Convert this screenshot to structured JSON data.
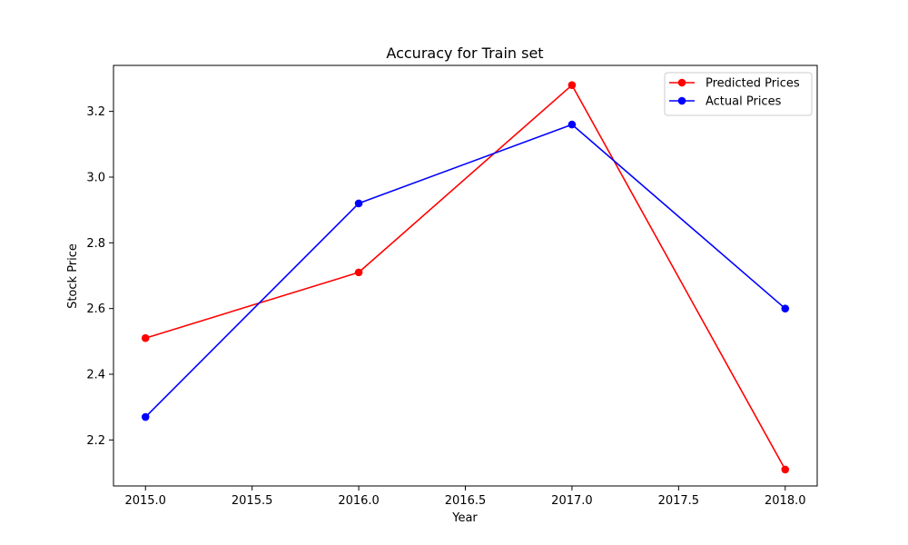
{
  "chart_data": {
    "type": "line",
    "title": "Accuracy for Train set",
    "xlabel": "Year",
    "ylabel": "Stock Price",
    "x": [
      2015.0,
      2016.0,
      2017.0,
      2018.0
    ],
    "xlim": [
      2014.85,
      2018.15
    ],
    "ylim": [
      2.06,
      3.34
    ],
    "xticks": [
      2015.0,
      2015.5,
      2016.0,
      2016.5,
      2017.0,
      2017.5,
      2018.0
    ],
    "xtick_labels": [
      "2015.0",
      "2015.5",
      "2016.0",
      "2016.5",
      "2017.0",
      "2017.5",
      "2018.0"
    ],
    "yticks": [
      2.2,
      2.4,
      2.6,
      2.8,
      3.0,
      3.2
    ],
    "ytick_labels": [
      "2.2",
      "2.4",
      "2.6",
      "2.8",
      "3.0",
      "3.2"
    ],
    "grid": false,
    "legend_position": "top-right",
    "series": [
      {
        "name": "Predicted Prices",
        "color": "#ff0000",
        "values": [
          2.51,
          2.71,
          3.28,
          2.11
        ]
      },
      {
        "name": "Actual Prices",
        "color": "#0000ff",
        "values": [
          2.27,
          2.92,
          3.16,
          2.6
        ]
      }
    ]
  }
}
